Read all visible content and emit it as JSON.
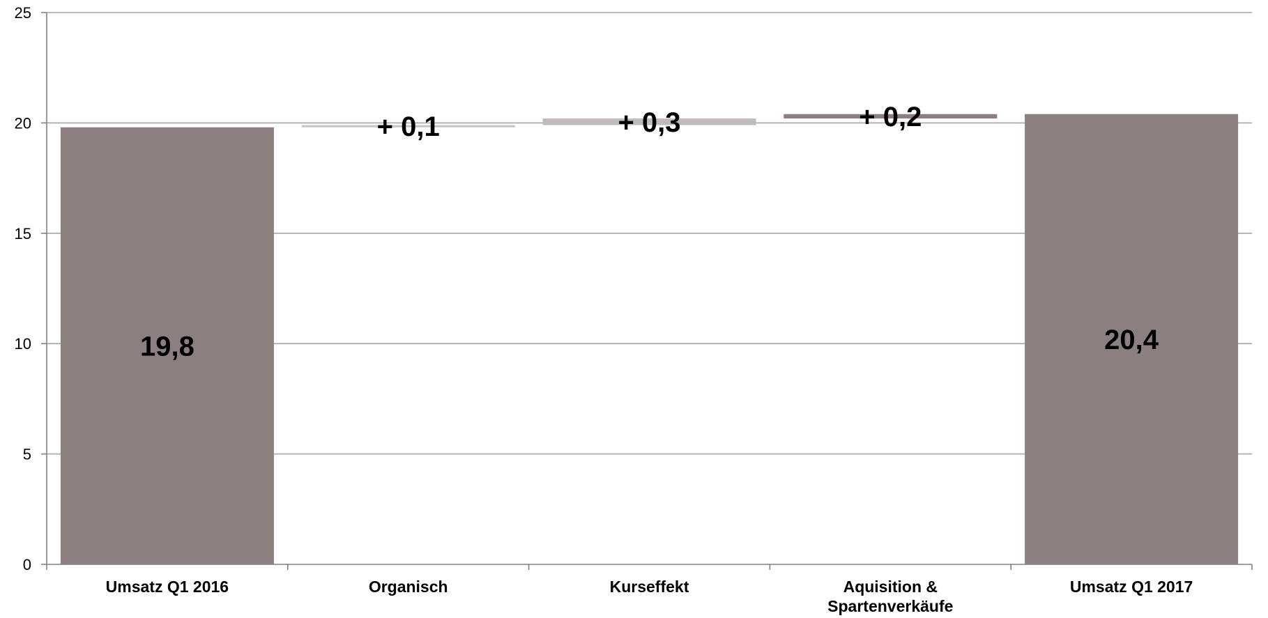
{
  "chart_data": {
    "type": "bar",
    "subtype": "waterfall",
    "title": "",
    "xlabel": "",
    "ylabel": "",
    "ylim": [
      0,
      25
    ],
    "y_ticks": [
      0,
      5,
      10,
      15,
      20,
      25
    ],
    "y_tick_labels": [
      "0",
      "5",
      "10",
      "15",
      "20",
      "25"
    ],
    "grid": true,
    "legend": "none",
    "categories": [
      [
        "Umsatz Q1 2016"
      ],
      [
        "Organisch"
      ],
      [
        "Kurseffekt"
      ],
      [
        "Aquisition &",
        "Spartenverkäufe"
      ],
      [
        "Umsatz Q1 2017"
      ]
    ],
    "bars": [
      {
        "kind": "total",
        "base": 0,
        "value": 19.8,
        "label": "19,8",
        "color": "#8b7f7f"
      },
      {
        "kind": "delta",
        "base": 19.8,
        "value": 0.1,
        "label": "+ 0,1",
        "color": "#c9c4c4"
      },
      {
        "kind": "delta",
        "base": 19.9,
        "value": 0.3,
        "label": "+ 0,3",
        "color": "#c0baba"
      },
      {
        "kind": "delta",
        "base": 20.2,
        "value": 0.2,
        "label": "+ 0,2",
        "color": "#8b7f7f"
      },
      {
        "kind": "total",
        "base": 0,
        "value": 20.4,
        "label": "20,4",
        "color": "#8b7f7f"
      }
    ],
    "gridline_color": "#a6a6a6",
    "axis_color": "#808080"
  }
}
